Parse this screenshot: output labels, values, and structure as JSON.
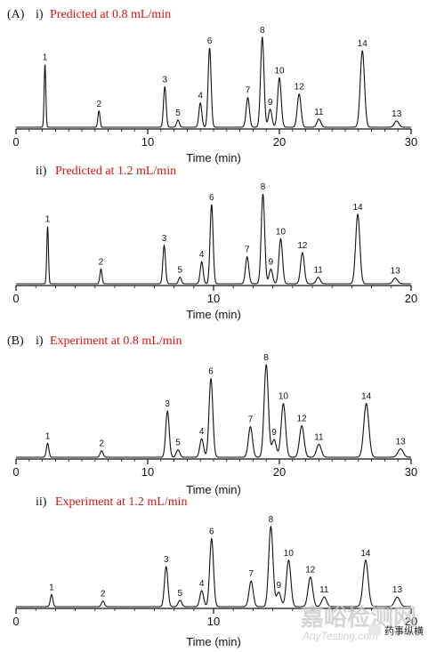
{
  "colors": {
    "red": "#e01010",
    "ink": "#111111",
    "watermark": "#c8c8c8"
  },
  "watermark": {
    "main": "嘉峪检测网",
    "sub": "AnyTesting.com",
    "badge": "药事纵横"
  },
  "chart_data": [
    {
      "type": "line",
      "section_label": "(A)",
      "title_prefix": "i)",
      "title": "Predicted at 0.8 mL/min",
      "xlabel": "Time (min)",
      "xlim": [
        0,
        30
      ],
      "xticks": [
        0,
        10,
        20,
        30
      ],
      "tick_labels": [
        "0",
        "10",
        "20",
        "30"
      ],
      "peaks": [
        {
          "label": "1",
          "t": 2.2,
          "h": 0.7
        },
        {
          "label": "2",
          "t": 6.3,
          "h": 0.18
        },
        {
          "label": "3",
          "t": 11.3,
          "h": 0.45
        },
        {
          "label": "4",
          "t": 14.0,
          "h": 0.27
        },
        {
          "label": "5",
          "t": 12.3,
          "h": 0.08
        },
        {
          "label": "6",
          "t": 14.7,
          "h": 0.88
        },
        {
          "label": "7",
          "t": 17.6,
          "h": 0.33
        },
        {
          "label": "8",
          "t": 18.7,
          "h": 1.0
        },
        {
          "label": "9",
          "t": 19.3,
          "h": 0.2
        },
        {
          "label": "10",
          "t": 20.0,
          "h": 0.55
        },
        {
          "label": "11",
          "t": 23.0,
          "h": 0.09
        },
        {
          "label": "12",
          "t": 21.5,
          "h": 0.37
        },
        {
          "label": "13",
          "t": 28.9,
          "h": 0.07
        },
        {
          "label": "14",
          "t": 26.3,
          "h": 0.85
        }
      ]
    },
    {
      "type": "line",
      "section_label": "",
      "title_prefix": "ii)",
      "title": "Predicted at 1.2 mL/min",
      "xlabel": "Time (min)",
      "xlim": [
        0,
        20
      ],
      "xticks": [
        0,
        10,
        20
      ],
      "tick_labels": [
        "0",
        "10",
        "20"
      ],
      "peaks": [
        {
          "label": "1",
          "t": 1.6,
          "h": 0.7
        },
        {
          "label": "2",
          "t": 4.3,
          "h": 0.18
        },
        {
          "label": "3",
          "t": 7.5,
          "h": 0.47
        },
        {
          "label": "4",
          "t": 9.4,
          "h": 0.27
        },
        {
          "label": "5",
          "t": 8.3,
          "h": 0.08
        },
        {
          "label": "6",
          "t": 9.9,
          "h": 0.97
        },
        {
          "label": "7",
          "t": 11.7,
          "h": 0.33
        },
        {
          "label": "8",
          "t": 12.5,
          "h": 1.1
        },
        {
          "label": "9",
          "t": 12.9,
          "h": 0.18
        },
        {
          "label": "10",
          "t": 13.4,
          "h": 0.55
        },
        {
          "label": "11",
          "t": 15.3,
          "h": 0.08
        },
        {
          "label": "12",
          "t": 14.5,
          "h": 0.38
        },
        {
          "label": "13",
          "t": 19.2,
          "h": 0.07
        },
        {
          "label": "14",
          "t": 17.3,
          "h": 0.85
        }
      ]
    },
    {
      "type": "line",
      "section_label": "(B)",
      "title_prefix": "i)",
      "title": "Experiment at 0.8 mL/min",
      "xlabel": "Time (min)",
      "xlim": [
        0,
        30
      ],
      "xticks": [
        0,
        10,
        20,
        30
      ],
      "tick_labels": [
        "0",
        "10",
        "20",
        "30"
      ],
      "peaks": [
        {
          "label": "1",
          "t": 2.4,
          "h": 0.15
        },
        {
          "label": "2",
          "t": 6.5,
          "h": 0.07
        },
        {
          "label": "3",
          "t": 11.5,
          "h": 0.5
        },
        {
          "label": "4",
          "t": 14.1,
          "h": 0.2
        },
        {
          "label": "5",
          "t": 12.3,
          "h": 0.08
        },
        {
          "label": "6",
          "t": 14.8,
          "h": 0.85
        },
        {
          "label": "7",
          "t": 17.8,
          "h": 0.33
        },
        {
          "label": "8",
          "t": 19.0,
          "h": 1.0
        },
        {
          "label": "9",
          "t": 19.6,
          "h": 0.19
        },
        {
          "label": "10",
          "t": 20.3,
          "h": 0.58
        },
        {
          "label": "11",
          "t": 23.0,
          "h": 0.14
        },
        {
          "label": "12",
          "t": 21.7,
          "h": 0.34
        },
        {
          "label": "13",
          "t": 29.2,
          "h": 0.09
        },
        {
          "label": "14",
          "t": 26.6,
          "h": 0.58
        }
      ]
    },
    {
      "type": "line",
      "section_label": "",
      "title_prefix": "ii)",
      "title": "Experiment at 1.2 mL/min",
      "xlabel": "Time (min)",
      "xlim": [
        0,
        20
      ],
      "xticks": [
        0,
        10,
        20
      ],
      "tick_labels": [
        "0",
        "10",
        "20"
      ],
      "peaks": [
        {
          "label": "1",
          "t": 1.8,
          "h": 0.15
        },
        {
          "label": "2",
          "t": 4.4,
          "h": 0.07
        },
        {
          "label": "3",
          "t": 7.6,
          "h": 0.5
        },
        {
          "label": "4",
          "t": 9.4,
          "h": 0.2
        },
        {
          "label": "5",
          "t": 8.3,
          "h": 0.08
        },
        {
          "label": "6",
          "t": 9.9,
          "h": 0.85
        },
        {
          "label": "7",
          "t": 11.9,
          "h": 0.32
        },
        {
          "label": "8",
          "t": 12.9,
          "h": 1.0
        },
        {
          "label": "9",
          "t": 13.3,
          "h": 0.18
        },
        {
          "label": "10",
          "t": 13.8,
          "h": 0.58
        },
        {
          "label": "11",
          "t": 15.6,
          "h": 0.12
        },
        {
          "label": "12",
          "t": 14.9,
          "h": 0.37
        },
        {
          "label": "13",
          "t": 19.3,
          "h": 0.12
        },
        {
          "label": "14",
          "t": 17.7,
          "h": 0.58
        }
      ]
    }
  ]
}
